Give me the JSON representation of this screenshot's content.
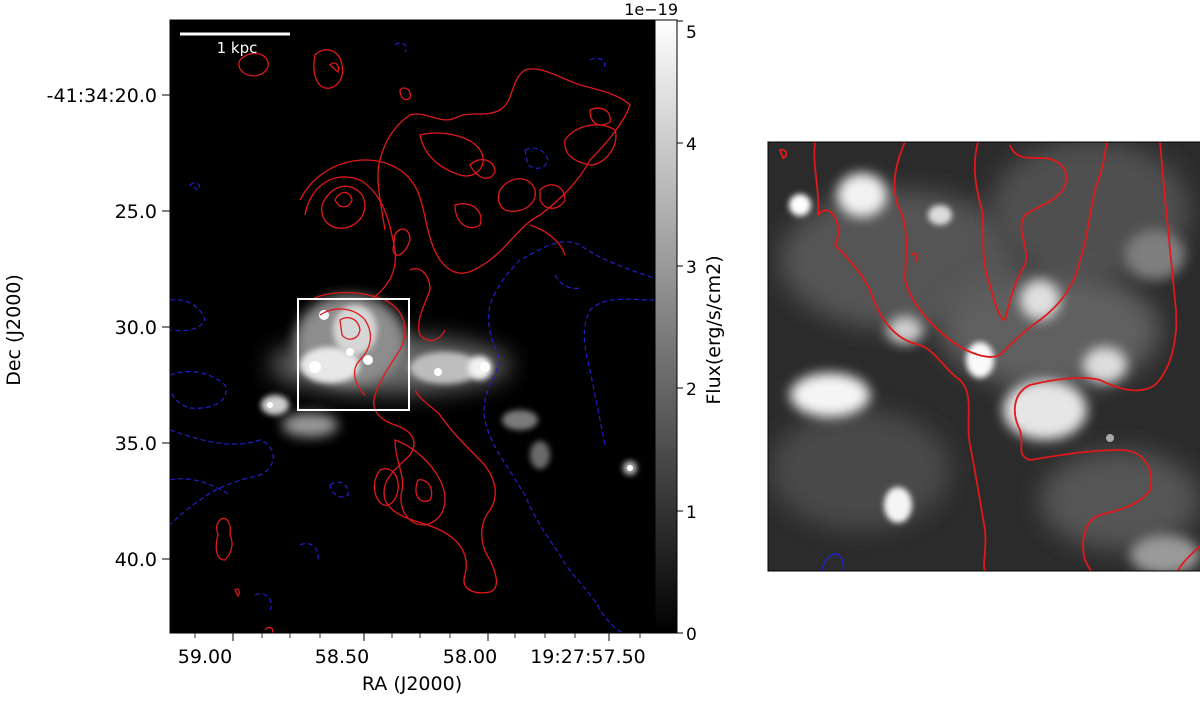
{
  "left_panel": {
    "scale_bar_label": "1 kpc",
    "x_label": "RA (J2000)",
    "y_label": "Dec (J2000)",
    "x_ticks": [
      "59.00",
      "58.50",
      "58.00",
      "19:27:57.50"
    ],
    "y_ticks": [
      "-41:34:20.0",
      "25.0",
      "30.0",
      "35.0",
      "40.0"
    ]
  },
  "colorbar": {
    "label": "Flux(erg/s/cm2)",
    "offset_text": "1e−19",
    "ticks": [
      "0",
      "1",
      "2",
      "3",
      "4",
      "5"
    ],
    "range": [
      0,
      5
    ]
  },
  "contour_colors": {
    "positive": "#e0191b",
    "negative": "#2020c8"
  },
  "image_colors": {
    "background": "#000000",
    "box": "#ffffff"
  }
}
